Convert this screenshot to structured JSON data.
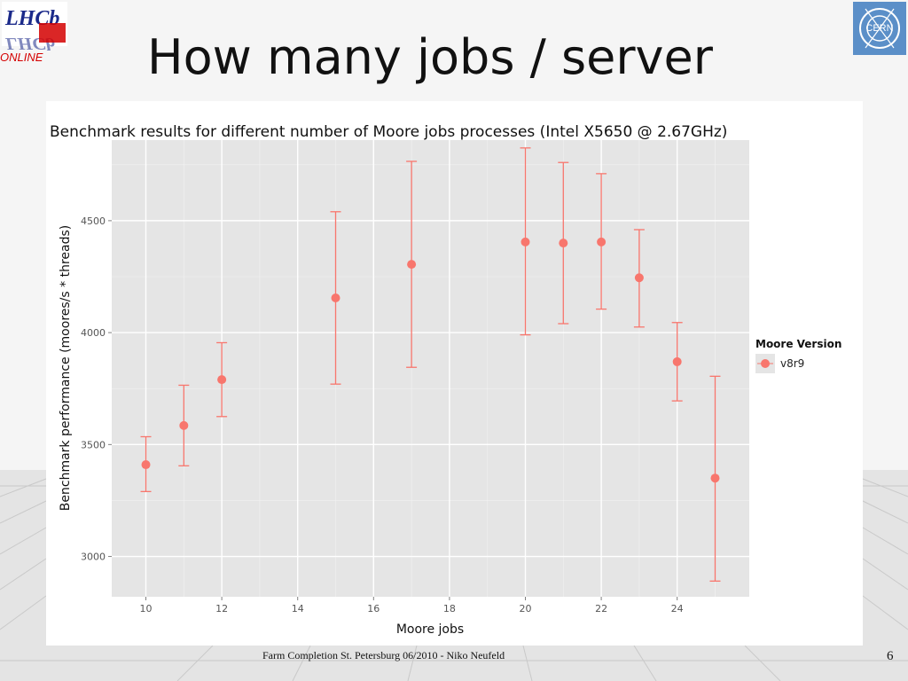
{
  "slide": {
    "title": "How many jobs / server",
    "footer": "Farm Completion St. Petersburg 06/2010 - Niko Neufeld",
    "page_number": "6",
    "logo_left_text": [
      "LHCb",
      "ONLINE"
    ],
    "logo_right_text": "CERN"
  },
  "colors": {
    "series": "#f8766d",
    "panel_background": "#e5e5e5",
    "gridline": "#ffffff",
    "online_text": "#d40000",
    "cern_logo": "#5b8fc8"
  },
  "chart_data": {
    "type": "scatter",
    "title": "Benchmark results for different number of Moore jobs processes (Intel X5650 @ 2.67GHz)",
    "xlabel": "Moore jobs",
    "ylabel": "Benchmark performance (moores/s * threads)",
    "xlim": [
      9.1,
      25.9
    ],
    "ylim": [
      2820,
      4860
    ],
    "x_ticks": [
      10,
      12,
      14,
      16,
      18,
      20,
      22,
      24
    ],
    "y_ticks": [
      3000,
      3500,
      4000,
      4500
    ],
    "grid": true,
    "legend": {
      "title": "Moore Version",
      "position": "right"
    },
    "series": [
      {
        "name": "v8r9",
        "points": [
          {
            "x": 10,
            "y": 3410,
            "ymin": 3290,
            "ymax": 3535
          },
          {
            "x": 11,
            "y": 3585,
            "ymin": 3405,
            "ymax": 3765
          },
          {
            "x": 12,
            "y": 3790,
            "ymin": 3625,
            "ymax": 3955
          },
          {
            "x": 15,
            "y": 4155,
            "ymin": 3770,
            "ymax": 4540
          },
          {
            "x": 17,
            "y": 4305,
            "ymin": 3845,
            "ymax": 4765
          },
          {
            "x": 20,
            "y": 4405,
            "ymin": 3990,
            "ymax": 4825
          },
          {
            "x": 21,
            "y": 4400,
            "ymin": 4040,
            "ymax": 4760
          },
          {
            "x": 22,
            "y": 4405,
            "ymin": 4105,
            "ymax": 4710
          },
          {
            "x": 23,
            "y": 4245,
            "ymin": 4025,
            "ymax": 4460
          },
          {
            "x": 24,
            "y": 3870,
            "ymin": 3695,
            "ymax": 4045
          },
          {
            "x": 25,
            "y": 3350,
            "ymin": 2890,
            "ymax": 3805
          }
        ]
      }
    ]
  }
}
